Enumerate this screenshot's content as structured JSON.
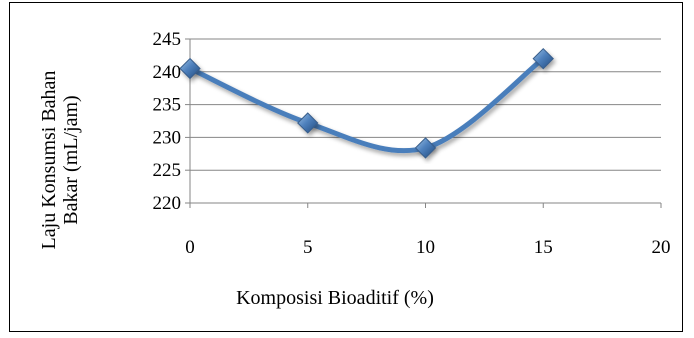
{
  "chart_data": {
    "type": "line",
    "smooth": true,
    "xlabel": "Komposisi Bioaditif (%)",
    "ylabel_lines": [
      "Laju Konsumsi Bahan",
      "Bakar (mL/jam)"
    ],
    "xlim": [
      0,
      20
    ],
    "ylim": [
      220,
      245
    ],
    "x_ticks": [
      0,
      5,
      10,
      15,
      20
    ],
    "y_ticks": [
      220,
      225,
      230,
      235,
      240,
      245
    ],
    "grid": {
      "horizontal": true,
      "vertical": false
    },
    "legend": "none",
    "series": [
      {
        "x": [
          0,
          5,
          10,
          15
        ],
        "values": [
          240.5,
          232.2,
          228.4,
          242.0
        ],
        "line_color": "#4A7EBB",
        "marker": "diamond",
        "marker_color": "#4F81BD"
      }
    ]
  }
}
